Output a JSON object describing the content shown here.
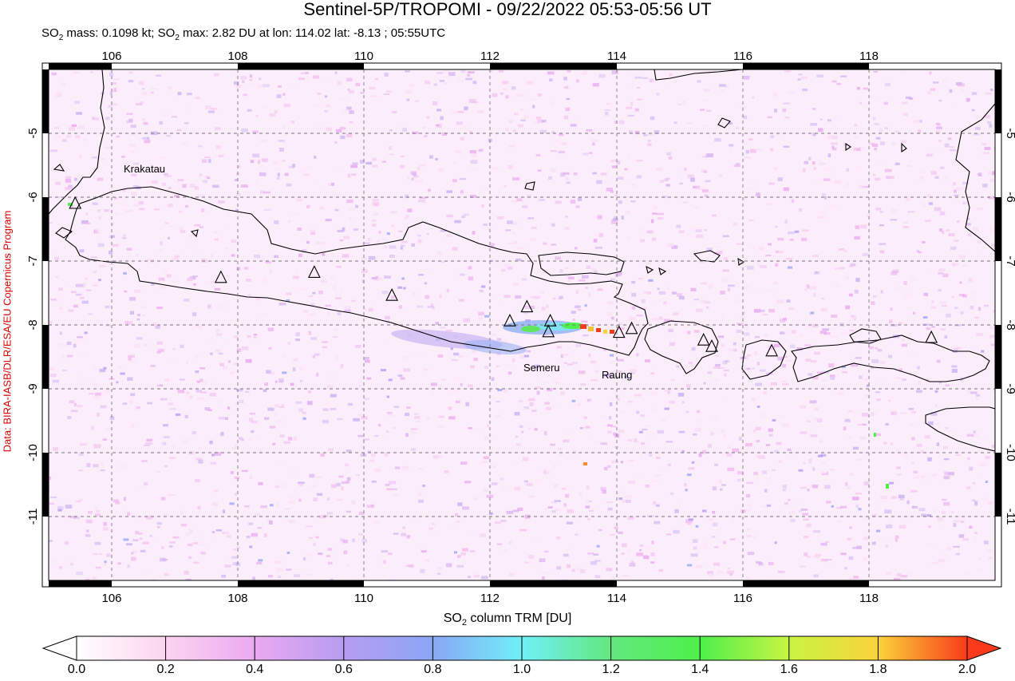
{
  "title": "Sentinel-5P/TROPOMI - 09/22/2022 05:53-05:56 UT",
  "subtitle": {
    "mass_prefix": "SO",
    "mass_sub": "2",
    "mass_text": " mass: 0.1098 kt; SO",
    "max_sub": "2",
    "max_text": " max: 2.82 DU at lon: 114.02 lat: -8.13 ; 05:55UTC"
  },
  "credit": "Data: BIRA-IASB/DLR/ESA/EU Copernicus Program",
  "map": {
    "lon_ticks": [
      "106",
      "108",
      "110",
      "112",
      "114",
      "116",
      "118"
    ],
    "lat_ticks": [
      "-5",
      "-6",
      "-7",
      "-8",
      "-9",
      "-10",
      "-11"
    ],
    "lon_range": [
      105,
      120
    ],
    "lat_range": [
      -12,
      -4
    ],
    "volcano_labels": {
      "krakatau": "Krakatau",
      "semeru": "Semeru",
      "raung": "Raung"
    },
    "volcanoes": [
      {
        "lon": 105.42,
        "lat": -6.1
      },
      {
        "lon": 107.73,
        "lat": -7.26
      },
      {
        "lon": 109.21,
        "lat": -7.18
      },
      {
        "lon": 110.44,
        "lat": -7.54
      },
      {
        "lon": 112.31,
        "lat": -7.94
      },
      {
        "lon": 112.58,
        "lat": -7.72
      },
      {
        "lon": 112.92,
        "lat": -8.11
      },
      {
        "lon": 112.95,
        "lat": -7.94
      },
      {
        "lon": 114.04,
        "lat": -8.12
      },
      {
        "lon": 114.24,
        "lat": -8.06
      },
      {
        "lon": 115.38,
        "lat": -8.24
      },
      {
        "lon": 115.51,
        "lat": -8.34
      },
      {
        "lon": 116.46,
        "lat": -8.41
      },
      {
        "lon": 118.99,
        "lat": -8.2
      }
    ]
  },
  "colorbar": {
    "title_prefix": "SO",
    "title_sub": "2",
    "title_suffix": " column TRM [DU]",
    "ticks": [
      "0.0",
      "0.2",
      "0.4",
      "0.6",
      "0.8",
      "1.0",
      "1.2",
      "1.4",
      "1.6",
      "1.8",
      "2.0"
    ],
    "colors": [
      "#ffffff",
      "#fbd4ef",
      "#eaa9f0",
      "#b69df1",
      "#8aa7f4",
      "#6ff0f8",
      "#62e87f",
      "#4ef04a",
      "#c8f442",
      "#fbd33a",
      "#fa3a1a"
    ]
  }
}
